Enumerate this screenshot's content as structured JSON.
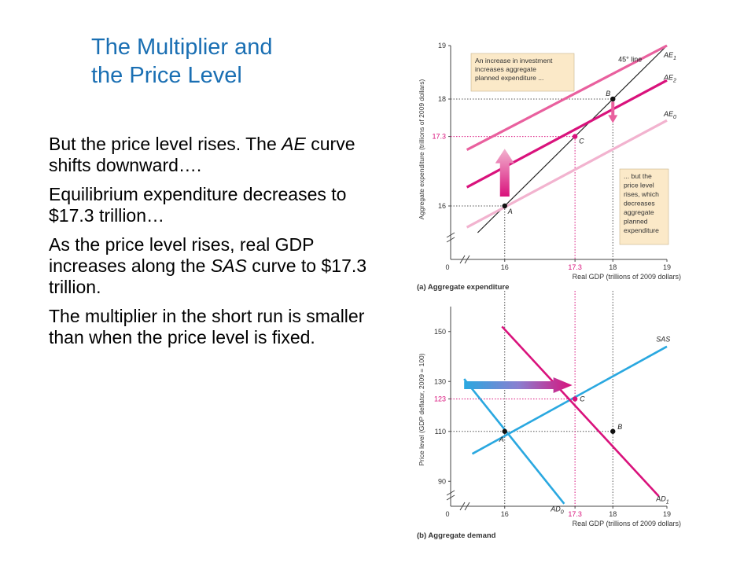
{
  "slide": {
    "title_line1": "The Multiplier and",
    "title_line2": "the Price Level",
    "bullets": [
      {
        "parts": [
          "But the price level rises. The ",
          "AE",
          " curve shifts downward…."
        ]
      },
      {
        "parts": [
          "Equilibrium expenditure decreases to $17.3 trillion…"
        ]
      },
      {
        "parts": [
          "As the price level rises, real GDP increases along the ",
          "SAS",
          " curve to $17.3 trillion."
        ]
      },
      {
        "parts": [
          "The multiplier in the short run is smaller than when the price level is fixed."
        ]
      }
    ]
  },
  "colors": {
    "title": "#1a6fb3",
    "ae0": "#f2b3cf",
    "ae1": "#e9609e",
    "ae2": "#d9127c",
    "line45": "#222222",
    "sas": "#2aa8e0",
    "ad0": "#2aa8e0",
    "ad1": "#d9127c",
    "highlight": "#d9127c",
    "note_bg": "#fbe9c8",
    "arrow_up": "#e9609e"
  },
  "chart_data": [
    {
      "type": "line",
      "caption": "(a) Aggregate expenditure",
      "xlabel": "Real GDP (trillions of 2009 dollars)",
      "ylabel": "Aggregate expenditure (trillions of 2009 dollars)",
      "xlim": [
        15,
        19
      ],
      "ylim": [
        15,
        19
      ],
      "x_ticks": [
        "0",
        "16",
        "17.3",
        "18",
        "19"
      ],
      "x_tick_values": [
        null,
        16,
        17.3,
        18,
        19
      ],
      "y_ticks": [
        "16",
        "17.3",
        "18",
        "19"
      ],
      "y_tick_values": [
        16,
        17.3,
        18,
        19
      ],
      "series": [
        {
          "name": "45° line",
          "x": [
            15.5,
            19
          ],
          "y": [
            15.5,
            19
          ]
        },
        {
          "name": "AE1",
          "x": [
            15.3,
            19
          ],
          "y": [
            17.05,
            19.0
          ]
        },
        {
          "name": "AE2",
          "x": [
            15.3,
            19
          ],
          "y": [
            16.35,
            18.35
          ]
        },
        {
          "name": "AE0",
          "x": [
            15.3,
            19
          ],
          "y": [
            15.6,
            17.6
          ]
        }
      ],
      "points": [
        {
          "label": "A",
          "x": 16,
          "y": 16
        },
        {
          "label": "B",
          "x": 18,
          "y": 18
        },
        {
          "label": "C",
          "x": 17.3,
          "y": 17.3
        }
      ],
      "annotations": [
        "An increase in investment increases aggregate planned expenditure ...",
        "... but the price level rises, which decreases aggregate planned expenditure"
      ]
    },
    {
      "type": "line",
      "caption": "(b) Aggregate demand",
      "xlabel": "Real GDP (trillions of 2009 dollars)",
      "ylabel": "Price level (GDP deflator, 2009 = 100)",
      "xlim": [
        15,
        19
      ],
      "ylim": [
        80,
        160
      ],
      "x_ticks": [
        "0",
        "16",
        "17.3",
        "18",
        "19"
      ],
      "x_tick_values": [
        null,
        16,
        17.3,
        18,
        19
      ],
      "y_ticks": [
        "90",
        "110",
        "123",
        "130",
        "150"
      ],
      "y_tick_values": [
        90,
        110,
        123,
        130,
        150
      ],
      "series": [
        {
          "name": "SAS",
          "x": [
            15.4,
            19
          ],
          "y": [
            101,
            144
          ]
        },
        {
          "name": "AD0",
          "x": [
            15.25,
            17.1
          ],
          "y": [
            131,
            81
          ]
        },
        {
          "name": "AD1",
          "x": [
            15.95,
            18.85
          ],
          "y": [
            152,
            84
          ]
        }
      ],
      "points": [
        {
          "label": "A",
          "x": 16,
          "y": 110
        },
        {
          "label": "B",
          "x": 18,
          "y": 110
        },
        {
          "label": "C",
          "x": 17.3,
          "y": 123
        }
      ]
    }
  ]
}
